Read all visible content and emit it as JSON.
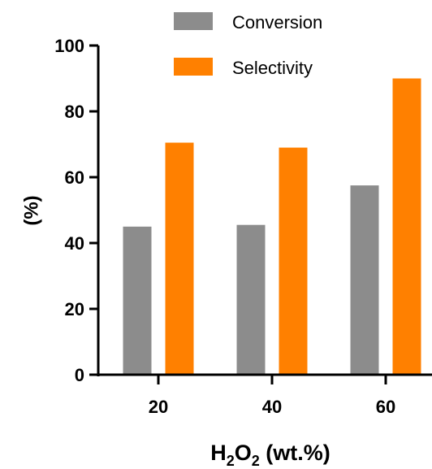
{
  "chart_data": {
    "type": "bar",
    "categories": [
      "20",
      "40",
      "60"
    ],
    "series": [
      {
        "name": "Conversion",
        "values": [
          45,
          45.5,
          57.5
        ],
        "color": "#8c8c8c"
      },
      {
        "name": "Selectivity",
        "values": [
          70.5,
          69,
          90
        ],
        "color": "#ff8000"
      }
    ],
    "ylabel": "(%)",
    "xlabel": {
      "main": "H",
      "sub1": "2",
      "mid": "O",
      "sub2": "2",
      "rest": " (wt.%)"
    },
    "ylim": [
      0,
      100
    ],
    "yticks": [
      0,
      20,
      40,
      60,
      80,
      100
    ],
    "grid": false,
    "legend_position": "top"
  }
}
